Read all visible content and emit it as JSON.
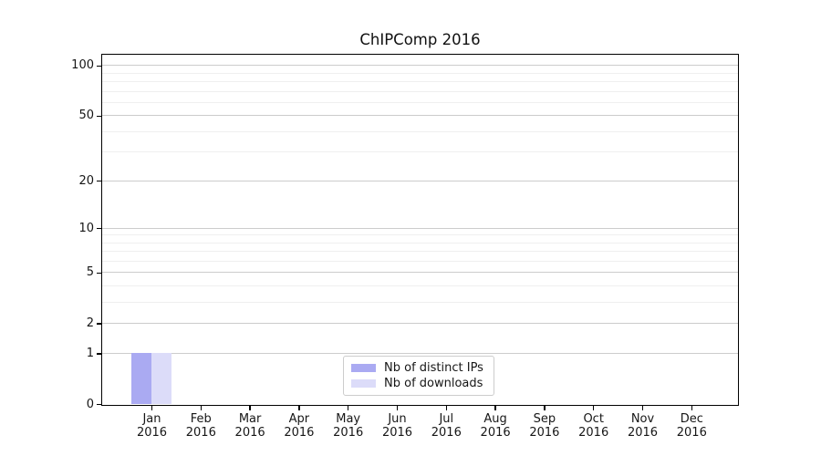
{
  "title": "ChIPComp 2016",
  "chart_data": {
    "type": "bar",
    "title": "ChIPComp 2016",
    "categories": [
      "Jan",
      "Feb",
      "Mar",
      "Apr",
      "May",
      "Jun",
      "Jul",
      "Aug",
      "Sep",
      "Oct",
      "Nov",
      "Dec"
    ],
    "xtick_year": "2016",
    "series": [
      {
        "name": "Nb of distinct IPs",
        "color": "#aaaaf2",
        "values": [
          1,
          0,
          0,
          0,
          0,
          0,
          0,
          0,
          0,
          0,
          0,
          0
        ]
      },
      {
        "name": "Nb of downloads",
        "color": "#dcdcf9",
        "values": [
          1,
          0,
          0,
          0,
          0,
          0,
          0,
          0,
          0,
          0,
          0,
          0
        ]
      }
    ],
    "xlabel": "",
    "ylabel": "",
    "yscale": "log1p",
    "yticks": [
      0,
      1,
      2,
      5,
      10,
      20,
      50,
      100
    ],
    "minor_gridlines": [
      3,
      4,
      6,
      7,
      8,
      9,
      30,
      40,
      60,
      70,
      80,
      90
    ],
    "ylim": [
      0,
      116
    ],
    "grid": "horizontal",
    "legend_position": "lower-center"
  },
  "legend": {
    "items": [
      {
        "label": "Nb of distinct IPs",
        "swatch_color": "#aaaaf2"
      },
      {
        "label": "Nb of downloads",
        "swatch_color": "#dcdcf9"
      }
    ]
  }
}
